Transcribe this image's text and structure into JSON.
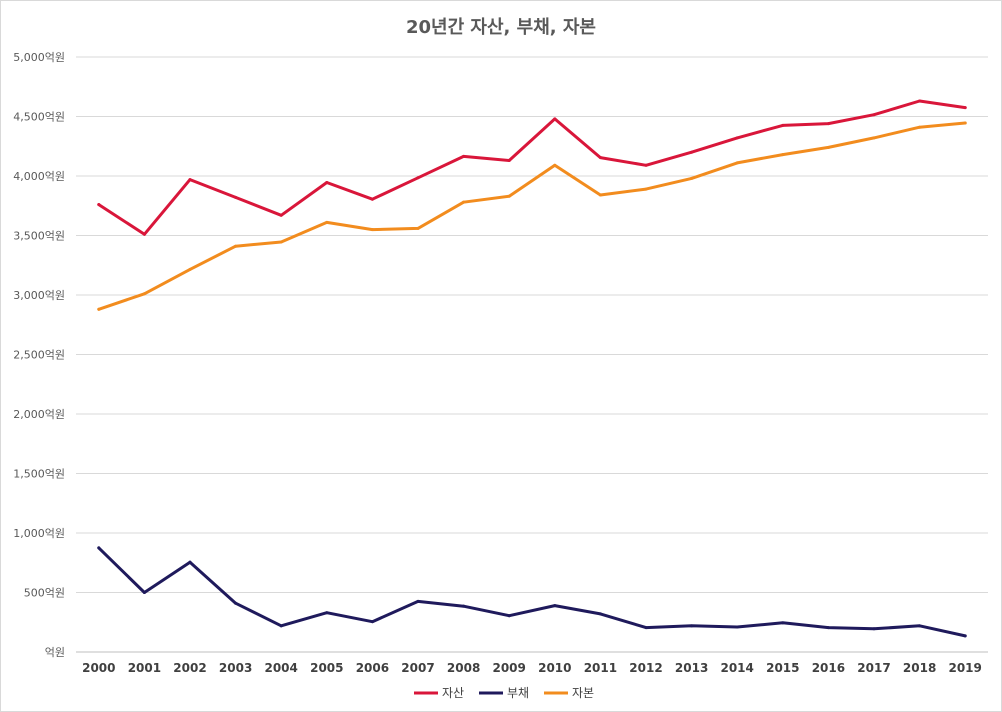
{
  "chart_data": {
    "type": "line",
    "title": "20년간 자산, 부채, 자본",
    "xlabel": "",
    "ylabel": "",
    "x": [
      "2000",
      "2001",
      "2002",
      "2003",
      "2004",
      "2005",
      "2006",
      "2007",
      "2008",
      "2009",
      "2010",
      "2011",
      "2012",
      "2013",
      "2014",
      "2015",
      "2016",
      "2017",
      "2018",
      "2019"
    ],
    "ylim": [
      0,
      5000
    ],
    "yticks": [
      {
        "value": 0,
        "label": "억원"
      },
      {
        "value": 500,
        "label": "500억원"
      },
      {
        "value": 1000,
        "label": "1,000억원"
      },
      {
        "value": 1500,
        "label": "1,500억원"
      },
      {
        "value": 2000,
        "label": "2,000억원"
      },
      {
        "value": 2500,
        "label": "2,500억원"
      },
      {
        "value": 3000,
        "label": "3,000억원"
      },
      {
        "value": 3500,
        "label": "3,500억원"
      },
      {
        "value": 4000,
        "label": "4,000억원"
      },
      {
        "value": 4500,
        "label": "4,500억원"
      },
      {
        "value": 5000,
        "label": "5,000억원"
      }
    ],
    "grid": "horizontal",
    "legend_position": "bottom",
    "series": [
      {
        "name": "자산",
        "color": "#d9163a",
        "values": [
          3760,
          3510,
          3970,
          3820,
          3670,
          3945,
          3805,
          3985,
          4165,
          4130,
          4480,
          4155,
          4090,
          4200,
          4320,
          4425,
          4440,
          4515,
          4630,
          4575
        ]
      },
      {
        "name": "부채",
        "color": "#1f1a5c",
        "values": [
          875,
          500,
          755,
          410,
          220,
          330,
          255,
          425,
          385,
          305,
          390,
          320,
          205,
          220,
          210,
          245,
          205,
          195,
          220,
          135
        ]
      },
      {
        "name": "자본",
        "color": "#f28c1e",
        "values": [
          2880,
          3010,
          3215,
          3410,
          3445,
          3610,
          3550,
          3560,
          3780,
          3830,
          4090,
          3840,
          3890,
          3980,
          4110,
          4180,
          4240,
          4320,
          4410,
          4445
        ]
      }
    ]
  }
}
